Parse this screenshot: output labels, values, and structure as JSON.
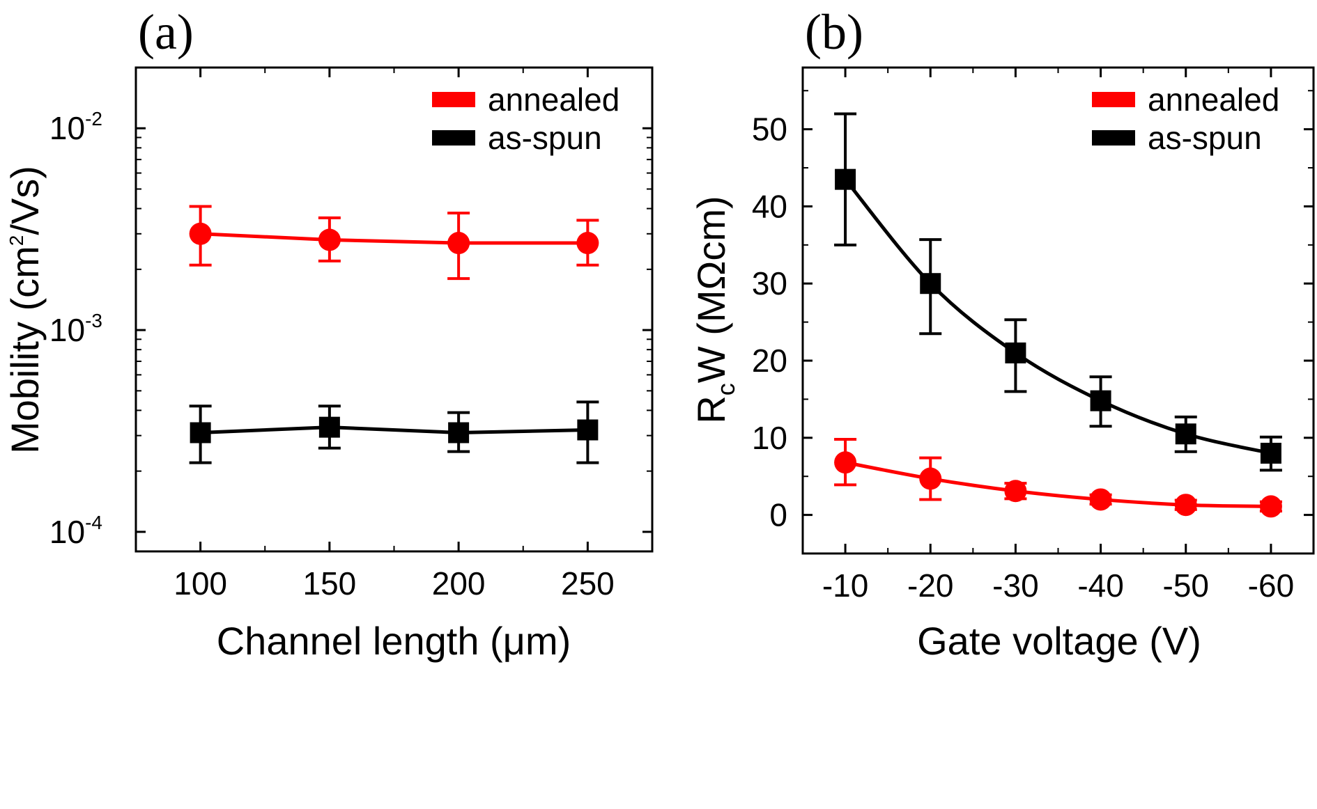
{
  "panel_labels": {
    "a": "(a)",
    "b": "(b)"
  },
  "colors": {
    "annealed": "#ff0000",
    "as_spun": "#000000"
  },
  "chart_data": [
    {
      "type": "line",
      "panel": "(a)",
      "xlabel": "Channel length (μm)",
      "ylabel_parts": {
        "main": "Mobility (cm",
        "sup": "2",
        "end": "/Vs)"
      },
      "yscale": "log",
      "xlim": [
        75,
        275
      ],
      "ylim": [
        8e-05,
        0.02
      ],
      "xticks": [
        100,
        150,
        200,
        250
      ],
      "xtick_labels": [
        "100",
        "150",
        "200",
        "250"
      ],
      "yticks": [
        {
          "value": 0.0001,
          "base": "10",
          "exp": "-4"
        },
        {
          "value": 0.001,
          "base": "10",
          "exp": "-3"
        },
        {
          "value": 0.01,
          "base": "10",
          "exp": "-2"
        }
      ],
      "legend_position": "top-right",
      "series": [
        {
          "name": "annealed",
          "color": "#ff0000",
          "marker": "circle",
          "x": [
            100,
            150,
            200,
            250
          ],
          "y": [
            0.003,
            0.0028,
            0.0027,
            0.0027
          ],
          "err_low": [
            0.0021,
            0.0022,
            0.0018,
            0.0021
          ],
          "err_high": [
            0.0041,
            0.0036,
            0.0038,
            0.0035
          ]
        },
        {
          "name": "as-spun",
          "color": "#000000",
          "marker": "square",
          "x": [
            100,
            150,
            200,
            250
          ],
          "y": [
            0.00031,
            0.00033,
            0.00031,
            0.00032
          ],
          "err_low": [
            0.00022,
            0.00026,
            0.00025,
            0.00022
          ],
          "err_high": [
            0.00042,
            0.00042,
            0.00039,
            0.00044
          ]
        }
      ]
    },
    {
      "type": "line",
      "panel": "(b)",
      "xlabel": "Gate voltage (V)",
      "ylabel_parts": {
        "main": "R",
        "sub": "c",
        "end": "W (MΩcm)"
      },
      "yscale": "linear",
      "xlim": [
        -5,
        -65
      ],
      "ylim": [
        -5,
        58
      ],
      "xticks": [
        -10,
        -20,
        -30,
        -40,
        -50,
        -60
      ],
      "xtick_labels": [
        "-10",
        "-20",
        "-30",
        "-40",
        "-50",
        "-60"
      ],
      "yticks": [
        0,
        10,
        20,
        30,
        40,
        50
      ],
      "ytick_labels": [
        "0",
        "10",
        "20",
        "30",
        "40",
        "50"
      ],
      "legend_position": "top-right",
      "series": [
        {
          "name": "annealed",
          "color": "#ff0000",
          "marker": "circle",
          "x": [
            -10,
            -20,
            -30,
            -40,
            -50,
            -60
          ],
          "y": [
            6.8,
            4.7,
            3.1,
            2.0,
            1.3,
            1.1
          ],
          "err_low": [
            3.9,
            2.0,
            2.1,
            1.4,
            0.7,
            0.5
          ],
          "err_high": [
            9.8,
            7.4,
            4.1,
            2.6,
            1.9,
            1.7
          ]
        },
        {
          "name": "as-spun",
          "color": "#000000",
          "marker": "square",
          "x": [
            -10,
            -20,
            -30,
            -40,
            -50,
            -60
          ],
          "y": [
            43.5,
            30,
            21,
            14.8,
            10.5,
            8.0
          ],
          "err_low": [
            35,
            23.5,
            16,
            11.5,
            8.2,
            5.8
          ],
          "err_high": [
            52,
            35.7,
            25.3,
            17.9,
            12.7,
            10.1
          ]
        }
      ]
    }
  ]
}
